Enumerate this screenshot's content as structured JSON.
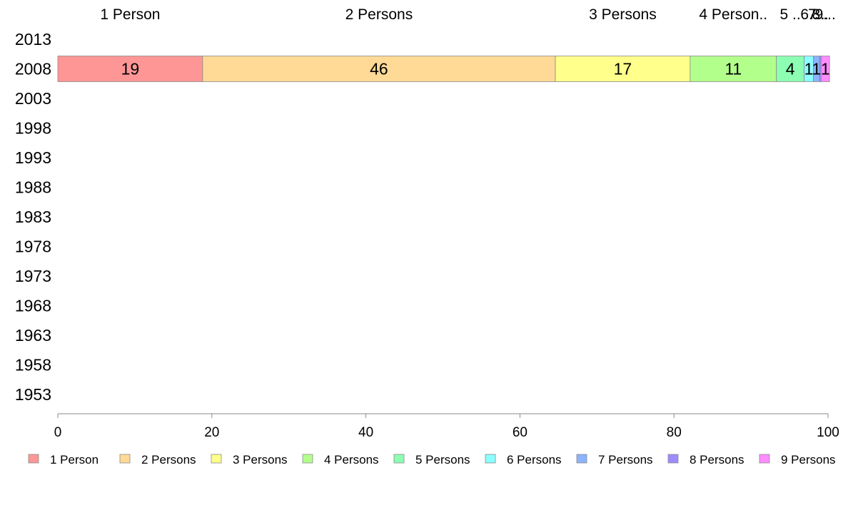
{
  "chart_data": {
    "type": "bar",
    "orientation": "horizontal",
    "stacked": true,
    "categories": [
      "2013",
      "2008",
      "2003",
      "1998",
      "1993",
      "1988",
      "1983",
      "1978",
      "1973",
      "1968",
      "1963",
      "1958",
      "1953"
    ],
    "series": [
      {
        "name": "1 Person",
        "color": "#ff9696",
        "values": [
          null,
          18.8,
          null,
          null,
          null,
          null,
          null,
          null,
          null,
          null,
          null,
          null,
          null
        ],
        "label": "19"
      },
      {
        "name": "2 Persons",
        "color": "#ffd996",
        "values": [
          null,
          45.8,
          null,
          null,
          null,
          null,
          null,
          null,
          null,
          null,
          null,
          null,
          null
        ],
        "label": "46"
      },
      {
        "name": "3 Persons",
        "color": "#ffff8c",
        "values": [
          null,
          17.5,
          null,
          null,
          null,
          null,
          null,
          null,
          null,
          null,
          null,
          null,
          null
        ],
        "label": "17"
      },
      {
        "name": "4 Persons",
        "color": "#b3ff8c",
        "values": [
          null,
          11.2,
          null,
          null,
          null,
          null,
          null,
          null,
          null,
          null,
          null,
          null,
          null
        ],
        "label": "11"
      },
      {
        "name": "5 Persons",
        "color": "#8cffb3",
        "values": [
          null,
          3.6,
          null,
          null,
          null,
          null,
          null,
          null,
          null,
          null,
          null,
          null,
          null
        ],
        "label": "4"
      },
      {
        "name": "6 Persons",
        "color": "#8cffff",
        "values": [
          null,
          1.2,
          null,
          null,
          null,
          null,
          null,
          null,
          null,
          null,
          null,
          null,
          null
        ],
        "label": "1"
      },
      {
        "name": "7 Persons",
        "color": "#8cb3ff",
        "values": [
          null,
          0.8,
          null,
          null,
          null,
          null,
          null,
          null,
          null,
          null,
          null,
          null,
          null
        ],
        "label": "1"
      },
      {
        "name": "8 Persons",
        "color": "#9c8cff",
        "values": [
          null,
          0.2,
          null,
          null,
          null,
          null,
          null,
          null,
          null,
          null,
          null,
          null,
          null
        ],
        "label": ""
      },
      {
        "name": "9 Persons",
        "color": "#ff8cff",
        "values": [
          null,
          1.1,
          null,
          null,
          null,
          null,
          null,
          null,
          null,
          null,
          null,
          null,
          null
        ],
        "label": "1"
      }
    ],
    "top_labels": [
      "1 Person",
      "2 Persons",
      "3 Persons",
      "4 Person..",
      "5 ..",
      "6..",
      "7..",
      "8..",
      "9..."
    ],
    "xlim": [
      0,
      100
    ],
    "xticks": [
      "0",
      "20",
      "40",
      "60",
      "80",
      "100"
    ],
    "legend_position": "bottom",
    "grid": false
  }
}
